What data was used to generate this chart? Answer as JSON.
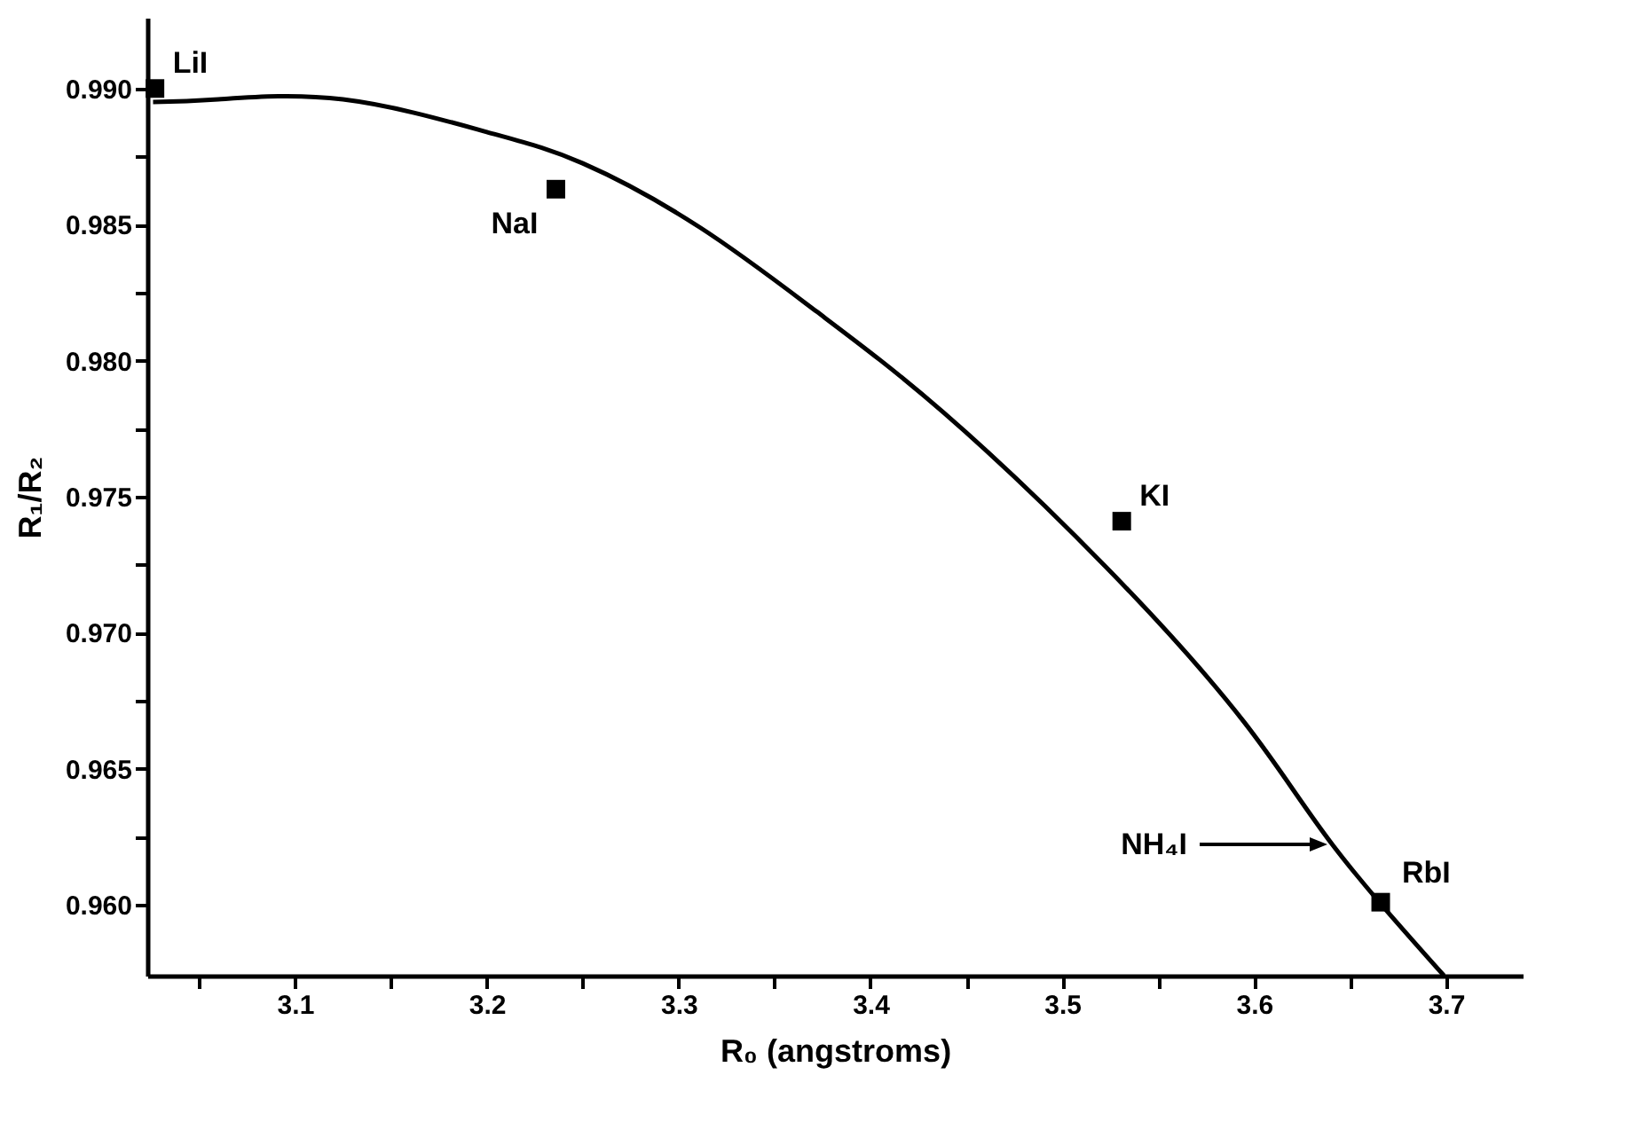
{
  "chart_data": {
    "type": "scatter",
    "xlabel": "R₀ (angstroms)",
    "ylabel": "R₁/R₂",
    "xlim": [
      3.023,
      3.74
    ],
    "ylim": [
      0.9574,
      0.9926
    ],
    "xticks": [
      {
        "value": 3.05,
        "label": null
      },
      3.1,
      {
        "value": 3.15,
        "label": null
      },
      3.2,
      {
        "value": 3.25,
        "label": null
      },
      3.3,
      {
        "value": 3.35,
        "label": null
      },
      3.4,
      {
        "value": 3.45,
        "label": null
      },
      3.5,
      {
        "value": 3.55,
        "label": null
      },
      3.6,
      {
        "value": 3.65,
        "label": null
      },
      3.7
    ],
    "yticks": [
      {
        "value": 0.96,
        "label": "0.960"
      },
      {
        "value": 0.9625,
        "label": null
      },
      0.965,
      {
        "value": 0.9675,
        "label": null
      },
      {
        "value": 0.97,
        "label": "0.970"
      },
      {
        "value": 0.9725,
        "label": null
      },
      0.975,
      {
        "value": 0.9775,
        "label": null
      },
      {
        "value": 0.98,
        "label": "0.980"
      },
      {
        "value": 0.9825,
        "label": null
      },
      0.985,
      {
        "value": 0.9875,
        "label": null
      },
      {
        "value": 0.99,
        "label": "0.990"
      }
    ],
    "grid": false,
    "marker": "square",
    "series": [
      {
        "color": "#000000",
        "x": [
          3.027,
          3.236,
          3.531,
          3.666
        ],
        "values": [
          0.99,
          0.9863,
          0.9741,
          0.9601
        ]
      },
      {
        "type": "line",
        "marker": "none",
        "color": "#000000",
        "x": [
          3.026,
          3.06,
          3.125,
          3.2,
          3.25,
          3.311,
          3.372,
          3.438,
          3.523,
          3.595,
          3.641,
          3.699
        ],
        "values": [
          0.9895,
          0.9896,
          0.9896,
          0.9884,
          0.98725,
          0.9849,
          0.9818,
          0.9781,
          0.9724,
          0.9667,
          0.9622,
          0.9574
        ]
      }
    ],
    "annotations": [
      {
        "text": "LiI",
        "x": 3.027,
        "y": 0.99
      },
      {
        "text": "NaI",
        "x": 3.236,
        "y": 0.9863
      },
      {
        "text": "KI",
        "x": 3.531,
        "y": 0.9741
      },
      {
        "text": "RbI",
        "x": 3.666,
        "y": 0.9601
      },
      "NH₄I"
    ]
  }
}
